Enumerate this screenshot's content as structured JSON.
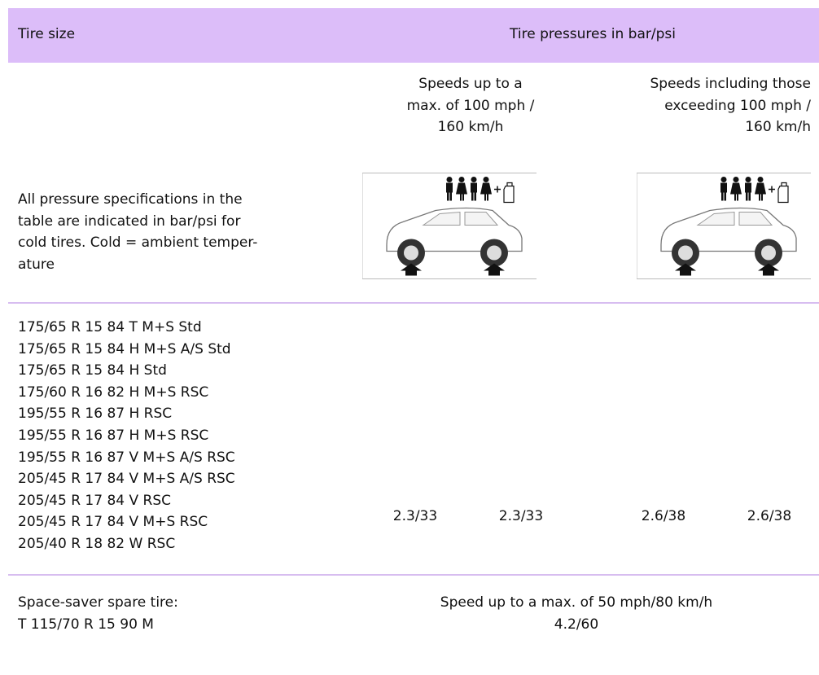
{
  "header": {
    "tire_size": "Tire size",
    "pressures": "Tire pressures in bar/psi"
  },
  "speed_columns": [
    {
      "lines": [
        "Speeds up to a",
        "max. of 100 mph /",
        "160 km/h"
      ]
    },
    {
      "lines": [
        "Speeds including those",
        "exceeding 100 mph /",
        "160 km/h"
      ]
    }
  ],
  "note_lines": [
    "All pressure specifications in the",
    "table are indicated in bar/psi for",
    "cold tires. Cold = ambient temper-",
    "ature"
  ],
  "tire_sizes": [
    "175/65 R 15 84 T M+S Std",
    "175/65 R 15 84 H M+S A/S Std",
    "175/65 R 15 84 H Std",
    "175/60 R 16 82 H M+S RSC",
    "195/55 R 16 87 H RSC",
    "195/55 R 16 87 H M+S RSC",
    "195/55 R 16 87 V M+S A/S RSC",
    "205/45 R 17 84 V M+S A/S RSC",
    "205/45 R 17 84 V RSC",
    "205/45 R 17 84 V M+S RSC",
    "205/40 R 18 82 W RSC"
  ],
  "pressures": [
    "2.3/33",
    "2.3/33",
    "2.6/38",
    "2.6/38"
  ],
  "spare": {
    "lines": [
      "Space-saver spare tire:",
      "T 115/70 R 15 90 M"
    ],
    "speed": "Speed up to a max. of 50 mph/80 km/h",
    "pressure": "4.2/60"
  }
}
